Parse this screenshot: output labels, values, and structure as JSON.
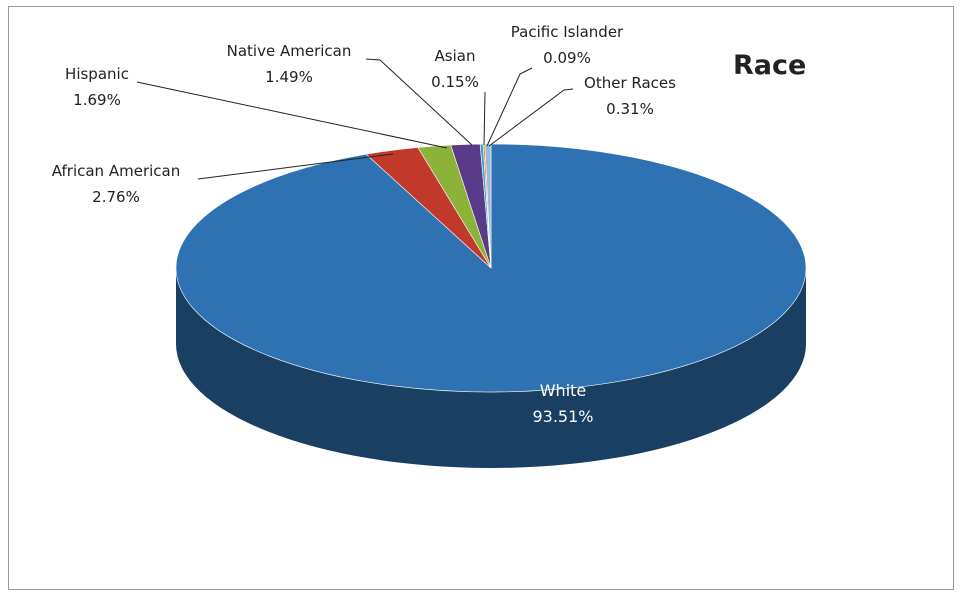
{
  "chart_data": {
    "type": "pie",
    "title": "Race",
    "slices": [
      {
        "label": "White",
        "value": 93.51,
        "display": "93.51%",
        "color": "#2e72b4"
      },
      {
        "label": "African American",
        "value": 2.76,
        "display": "2.76%",
        "color": "#c0392b"
      },
      {
        "label": "Hispanic",
        "value": 1.69,
        "display": "1.69%",
        "color": "#8cb23a"
      },
      {
        "label": "Native American",
        "value": 1.49,
        "display": "1.49%",
        "color": "#5b3a8a"
      },
      {
        "label": "Asian",
        "value": 0.15,
        "display": "0.15%",
        "color": "#3aa3c8"
      },
      {
        "label": "Pacific Islander",
        "value": 0.09,
        "display": "0.09%",
        "color": "#e08a2e"
      },
      {
        "label": "Other Races",
        "value": 0.31,
        "display": "0.31%",
        "color": "#9bb7d9"
      }
    ],
    "style": "3d-pie",
    "legend": "none"
  }
}
